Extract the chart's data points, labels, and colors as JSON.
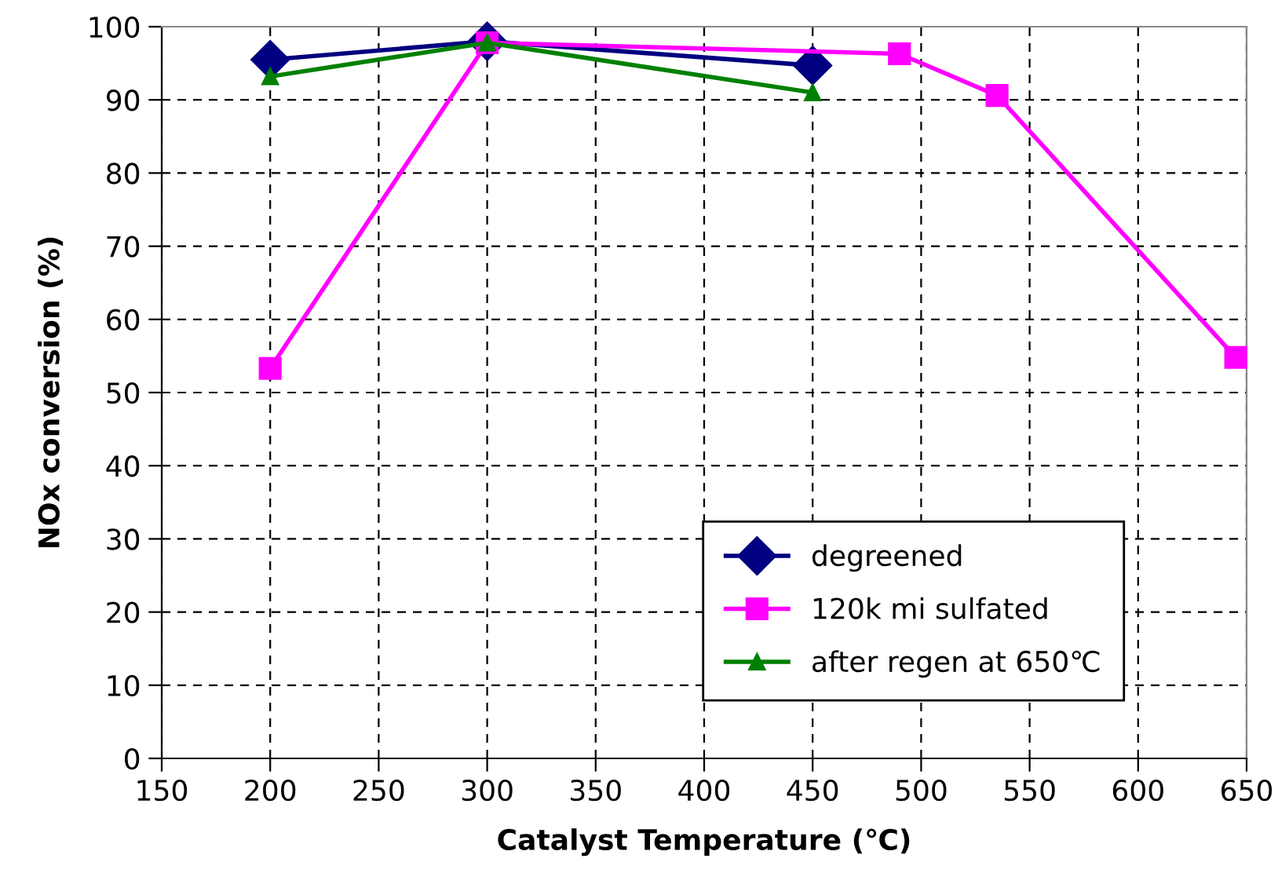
{
  "chart_data": {
    "type": "line",
    "xlabel": "Catalyst Temperature (℃)",
    "ylabel": "NOx conversion (%)",
    "xlim": [
      150,
      650
    ],
    "xticks": [
      150,
      200,
      250,
      300,
      350,
      400,
      450,
      500,
      550,
      600,
      650
    ],
    "ylim": [
      0,
      100
    ],
    "yticks": [
      0,
      10,
      20,
      30,
      40,
      50,
      60,
      70,
      80,
      90,
      100
    ],
    "grid": true,
    "legend": "bottom right",
    "series": [
      {
        "name": "degreened",
        "color": "#000080",
        "marker": "diamond",
        "x": [
          200,
          300,
          450
        ],
        "values": [
          95.5,
          98.0,
          94.7
        ]
      },
      {
        "name": "120k mi sulfated",
        "color": "#ff00ff",
        "marker": "square",
        "x": [
          200,
          300,
          490,
          535,
          645
        ],
        "values": [
          53.3,
          97.8,
          96.3,
          90.6,
          54.8
        ]
      },
      {
        "name": "after regen at 650℃",
        "color": "#008000",
        "marker": "triangle",
        "x": [
          200,
          300,
          450
        ],
        "values": [
          93.2,
          97.8,
          91.0
        ]
      }
    ]
  }
}
